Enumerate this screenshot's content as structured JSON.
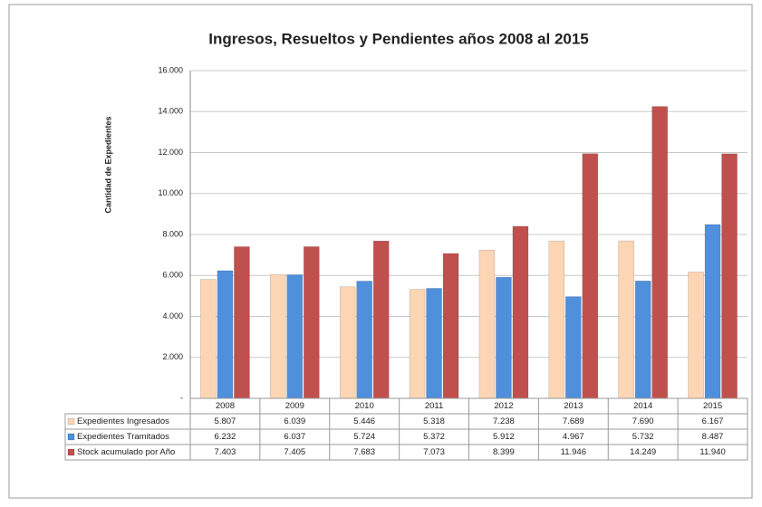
{
  "chart_data": {
    "type": "bar",
    "title": "Ingresos, Resueltos y Pendientes años 2008 al 2015",
    "y_label": "Cantidad de Expedientes",
    "categories": [
      "2008",
      "2009",
      "2010",
      "2011",
      "2012",
      "2013",
      "2014",
      "2015"
    ],
    "series": [
      {
        "name": "Expedientes Ingresados",
        "color": "#fcd5b4",
        "values": [
          5807,
          6039,
          5446,
          5318,
          7238,
          7689,
          7690,
          6167
        ],
        "value_labels": [
          "5.807",
          "6.039",
          "5.446",
          "5.318",
          "7.238",
          "7.689",
          "7.690",
          "6.167"
        ]
      },
      {
        "name": "Expedientes Tramitados",
        "color": "#4f8fdc",
        "values": [
          6232,
          6037,
          5724,
          5372,
          5912,
          4967,
          5732,
          8487
        ],
        "value_labels": [
          "6.232",
          "6.037",
          "5.724",
          "5.372",
          "5.912",
          "4.967",
          "5.732",
          "8.487"
        ]
      },
      {
        "name": "Stock acumulado por Año",
        "color": "#c0504d",
        "values": [
          7403,
          7405,
          7683,
          7073,
          8399,
          11946,
          14249,
          11940
        ],
        "value_labels": [
          "7.403",
          "7.405",
          "7.683",
          "7.073",
          "8.399",
          "11.946",
          "14.249",
          "11.940"
        ]
      }
    ],
    "ylim": [
      0,
      16000
    ],
    "yticks": [
      {
        "value": 0,
        "label": "-"
      },
      {
        "value": 2000,
        "label": "2.000"
      },
      {
        "value": 4000,
        "label": "4.000"
      },
      {
        "value": 6000,
        "label": "6.000"
      },
      {
        "value": 8000,
        "label": "8.000"
      },
      {
        "value": 10000,
        "label": "10.000"
      },
      {
        "value": 12000,
        "label": "12.000"
      },
      {
        "value": 14000,
        "label": "14.000"
      },
      {
        "value": 16000,
        "label": "16.000"
      }
    ],
    "grid": true,
    "data_table": true
  }
}
